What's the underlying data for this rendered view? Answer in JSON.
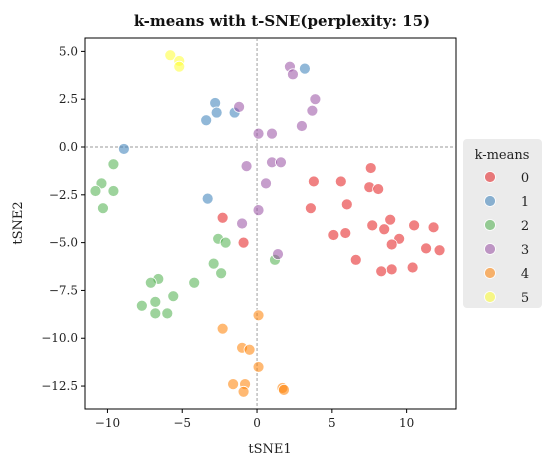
{
  "chart_data": {
    "type": "scatter",
    "title": "k-means with t-SNE(perplexity: 15)",
    "xlabel": "tSNE1",
    "ylabel": "tSNE2",
    "xlim": [
      -11.5,
      13.3
    ],
    "ylim": [
      -13.7,
      5.7
    ],
    "xticks": [
      -10,
      -5,
      0,
      5,
      10
    ],
    "xtick_labels": [
      "−10",
      "−5",
      "0",
      "5",
      "10"
    ],
    "yticks": [
      5.0,
      2.5,
      0.0,
      -2.5,
      -5.0,
      -7.5,
      -10.0,
      -12.5
    ],
    "ytick_labels": [
      "5.0",
      "2.5",
      "0.0",
      "−2.5",
      "−5.0",
      "−7.5",
      "−10.0",
      "−12.5"
    ],
    "grid": false,
    "reference_lines": {
      "x": 0,
      "y": 0,
      "style": "dashed"
    },
    "legend": {
      "title": "k-means",
      "placement": "right-outside"
    },
    "series": [
      {
        "name": "0",
        "color": "#e41a1c",
        "points": [
          [
            7.6,
            -1.1
          ],
          [
            3.8,
            -1.8
          ],
          [
            5.6,
            -1.8
          ],
          [
            7.5,
            -2.1
          ],
          [
            8.1,
            -2.2
          ],
          [
            6.0,
            -3.0
          ],
          [
            3.6,
            -3.2
          ],
          [
            -2.3,
            -3.7
          ],
          [
            8.9,
            -3.8
          ],
          [
            7.7,
            -4.1
          ],
          [
            10.5,
            -4.1
          ],
          [
            11.8,
            -4.2
          ],
          [
            8.5,
            -4.3
          ],
          [
            5.1,
            -4.6
          ],
          [
            5.9,
            -4.5
          ],
          [
            9.5,
            -4.8
          ],
          [
            -0.9,
            -5.0
          ],
          [
            9.0,
            -5.1
          ],
          [
            11.3,
            -5.3
          ],
          [
            12.2,
            -5.4
          ],
          [
            6.6,
            -5.9
          ],
          [
            10.4,
            -6.3
          ],
          [
            9.0,
            -6.4
          ],
          [
            8.3,
            -6.5
          ]
        ]
      },
      {
        "name": "1",
        "color": "#377eb8",
        "points": [
          [
            -2.8,
            2.3
          ],
          [
            3.2,
            4.1
          ],
          [
            -2.7,
            1.8
          ],
          [
            -1.5,
            1.8
          ],
          [
            -3.4,
            1.4
          ],
          [
            -8.9,
            -0.1
          ],
          [
            -3.3,
            -2.7
          ]
        ]
      },
      {
        "name": "2",
        "color": "#4daf4a",
        "points": [
          [
            -9.6,
            -0.9
          ],
          [
            -10.4,
            -1.9
          ],
          [
            -10.8,
            -2.3
          ],
          [
            -9.6,
            -2.3
          ],
          [
            -10.3,
            -3.2
          ],
          [
            -2.6,
            -4.8
          ],
          [
            -2.1,
            -5.0
          ],
          [
            1.2,
            -5.9
          ],
          [
            -2.9,
            -6.1
          ],
          [
            -2.4,
            -6.6
          ],
          [
            -6.6,
            -6.9
          ],
          [
            -4.2,
            -7.1
          ],
          [
            -7.1,
            -7.1
          ],
          [
            -5.6,
            -7.8
          ],
          [
            -6.8,
            -8.1
          ],
          [
            -7.7,
            -8.3
          ],
          [
            -6.8,
            -8.7
          ],
          [
            -6.0,
            -8.7
          ]
        ]
      },
      {
        "name": "3",
        "color": "#984ea3",
        "points": [
          [
            2.2,
            4.2
          ],
          [
            2.4,
            3.8
          ],
          [
            3.9,
            2.5
          ],
          [
            -1.2,
            2.1
          ],
          [
            3.7,
            1.9
          ],
          [
            3.0,
            1.1
          ],
          [
            0.1,
            0.7
          ],
          [
            1.0,
            0.7
          ],
          [
            -0.7,
            -1.0
          ],
          [
            1.0,
            -0.8
          ],
          [
            1.6,
            -0.8
          ],
          [
            0.6,
            -1.9
          ],
          [
            0.1,
            -3.3
          ],
          [
            -1.0,
            -4.0
          ],
          [
            1.4,
            -5.6
          ]
        ]
      },
      {
        "name": "4",
        "color": "#ff7f00",
        "points": [
          [
            0.1,
            -8.8
          ],
          [
            -2.3,
            -9.5
          ],
          [
            -1.0,
            -10.5
          ],
          [
            -0.5,
            -10.6
          ],
          [
            0.1,
            -11.5
          ],
          [
            -1.6,
            -12.4
          ],
          [
            -0.8,
            -12.4
          ],
          [
            1.7,
            -12.6
          ],
          [
            1.8,
            -12.7
          ],
          [
            -0.9,
            -12.8
          ]
        ]
      },
      {
        "name": "5",
        "color": "#ffff33",
        "points": [
          [
            -5.8,
            4.8
          ],
          [
            -5.2,
            4.5
          ],
          [
            -5.2,
            4.2
          ]
        ]
      }
    ]
  }
}
